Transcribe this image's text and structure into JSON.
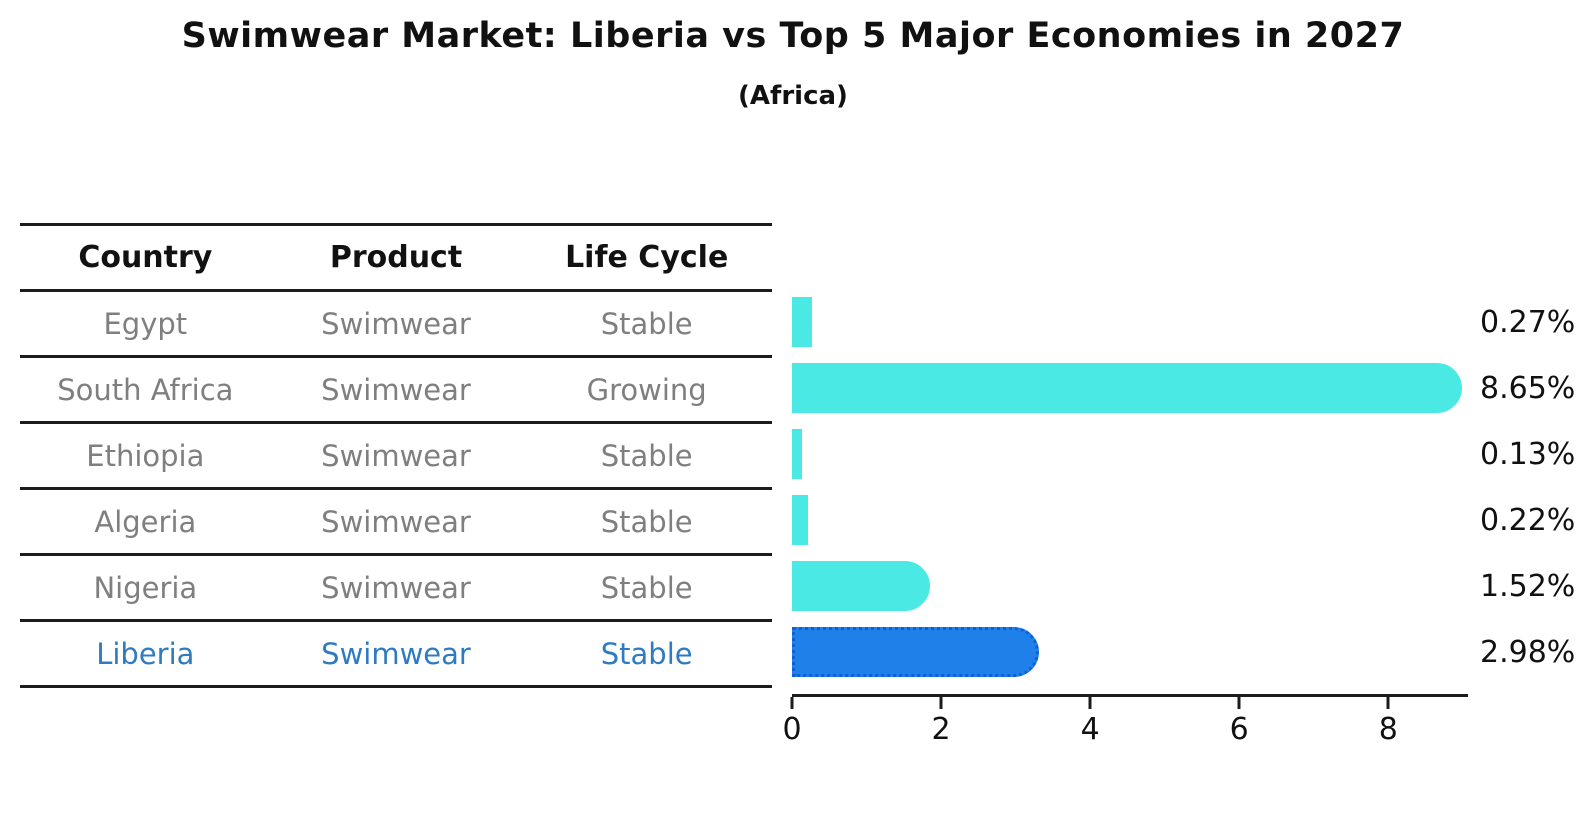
{
  "title": "Swimwear Market: Liberia vs Top 5 Major Economies in 2027",
  "subtitle": "(Africa)",
  "table": {
    "headers": {
      "country": "Country",
      "product": "Product",
      "life_cycle": "Life Cycle"
    }
  },
  "rows": [
    {
      "country": "Egypt",
      "product": "Swimwear",
      "life_cycle": "Stable",
      "value": 0.27,
      "label": "0.27%",
      "highlight": false
    },
    {
      "country": "South Africa",
      "product": "Swimwear",
      "life_cycle": "Growing",
      "value": 8.65,
      "label": "8.65%",
      "highlight": false
    },
    {
      "country": "Ethiopia",
      "product": "Swimwear",
      "life_cycle": "Stable",
      "value": 0.13,
      "label": "0.13%",
      "highlight": false
    },
    {
      "country": "Algeria",
      "product": "Swimwear",
      "life_cycle": "Stable",
      "value": 0.22,
      "label": "0.22%",
      "highlight": false
    },
    {
      "country": "Nigeria",
      "product": "Swimwear",
      "life_cycle": "Stable",
      "value": 1.52,
      "label": "1.52%",
      "highlight": false
    },
    {
      "country": "Liberia",
      "product": "Swimwear",
      "life_cycle": "Stable",
      "value": 2.98,
      "label": "2.98%",
      "highlight": true
    }
  ],
  "chart_data": {
    "type": "bar",
    "orientation": "horizontal",
    "title": "Swimwear Market: Liberia vs Top 5 Major Economies in 2027 (Africa)",
    "categories": [
      "Egypt",
      "South Africa",
      "Ethiopia",
      "Algeria",
      "Nigeria",
      "Liberia"
    ],
    "values": [
      0.27,
      8.65,
      0.13,
      0.22,
      1.52,
      2.98
    ],
    "value_labels": [
      "0.27%",
      "8.65%",
      "0.13%",
      "0.22%",
      "1.52%",
      "2.98%"
    ],
    "series_extra": {
      "product": "Swimwear",
      "life_cycle": [
        "Stable",
        "Growing",
        "Stable",
        "Stable",
        "Stable",
        "Stable"
      ]
    },
    "highlighted_category": "Liberia",
    "xlabel": "",
    "ylabel": "",
    "xticks": [
      0,
      2,
      4,
      6,
      8
    ],
    "xlim": [
      0,
      9.07
    ],
    "grid": false,
    "legend": false
  },
  "colors": {
    "bar": "#4be9e4",
    "highlight_bar": "#1e80e8",
    "highlight_border": "#0f5fd7",
    "highlight_text": "#2e7bc1",
    "row_text": "#7f7f7f",
    "line": "#1c1c1c"
  }
}
